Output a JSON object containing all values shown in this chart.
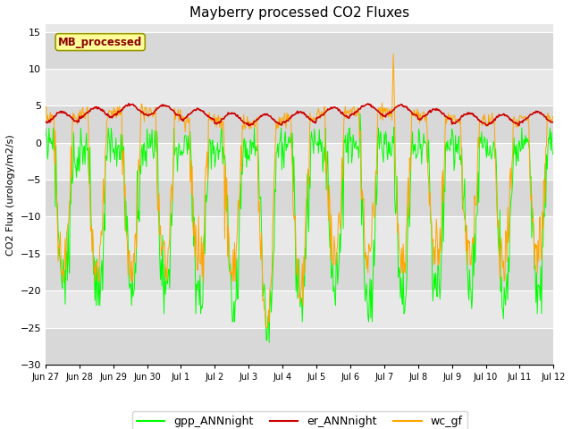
{
  "title": "Mayberry processed CO2 Fluxes",
  "ylabel": "CO2 Flux (urology/m2/s)",
  "ylim": [
    -30,
    16
  ],
  "yticks": [
    -30,
    -25,
    -20,
    -15,
    -10,
    -5,
    0,
    5,
    10,
    15
  ],
  "plot_bg_light": "#dcdcdc",
  "plot_bg_dark": "#c8c8c8",
  "gpp_color": "#00ff00",
  "er_color": "#cc0000",
  "wc_color": "#ffa500",
  "legend_label_gpp": "gpp_ANNnight",
  "legend_label_er": "er_ANNnight",
  "legend_label_wc": "wc_gf",
  "text_label": "MB_processed",
  "text_label_color": "#8b0000",
  "text_label_bg": "#ffff99",
  "n_points_per_day": 48,
  "n_days": 15,
  "tick_labels": [
    "Jun 27",
    "Jun 28",
    "Jun 29",
    "Jun 30",
    "Jul 1",
    "Jul 2",
    "Jul 3",
    "Jul 4",
    "Jul 5",
    "Jul 6",
    "Jul 7",
    "Jul 8",
    "Jul 9",
    "Jul 10",
    "Jul 11",
    "Jul 12"
  ]
}
